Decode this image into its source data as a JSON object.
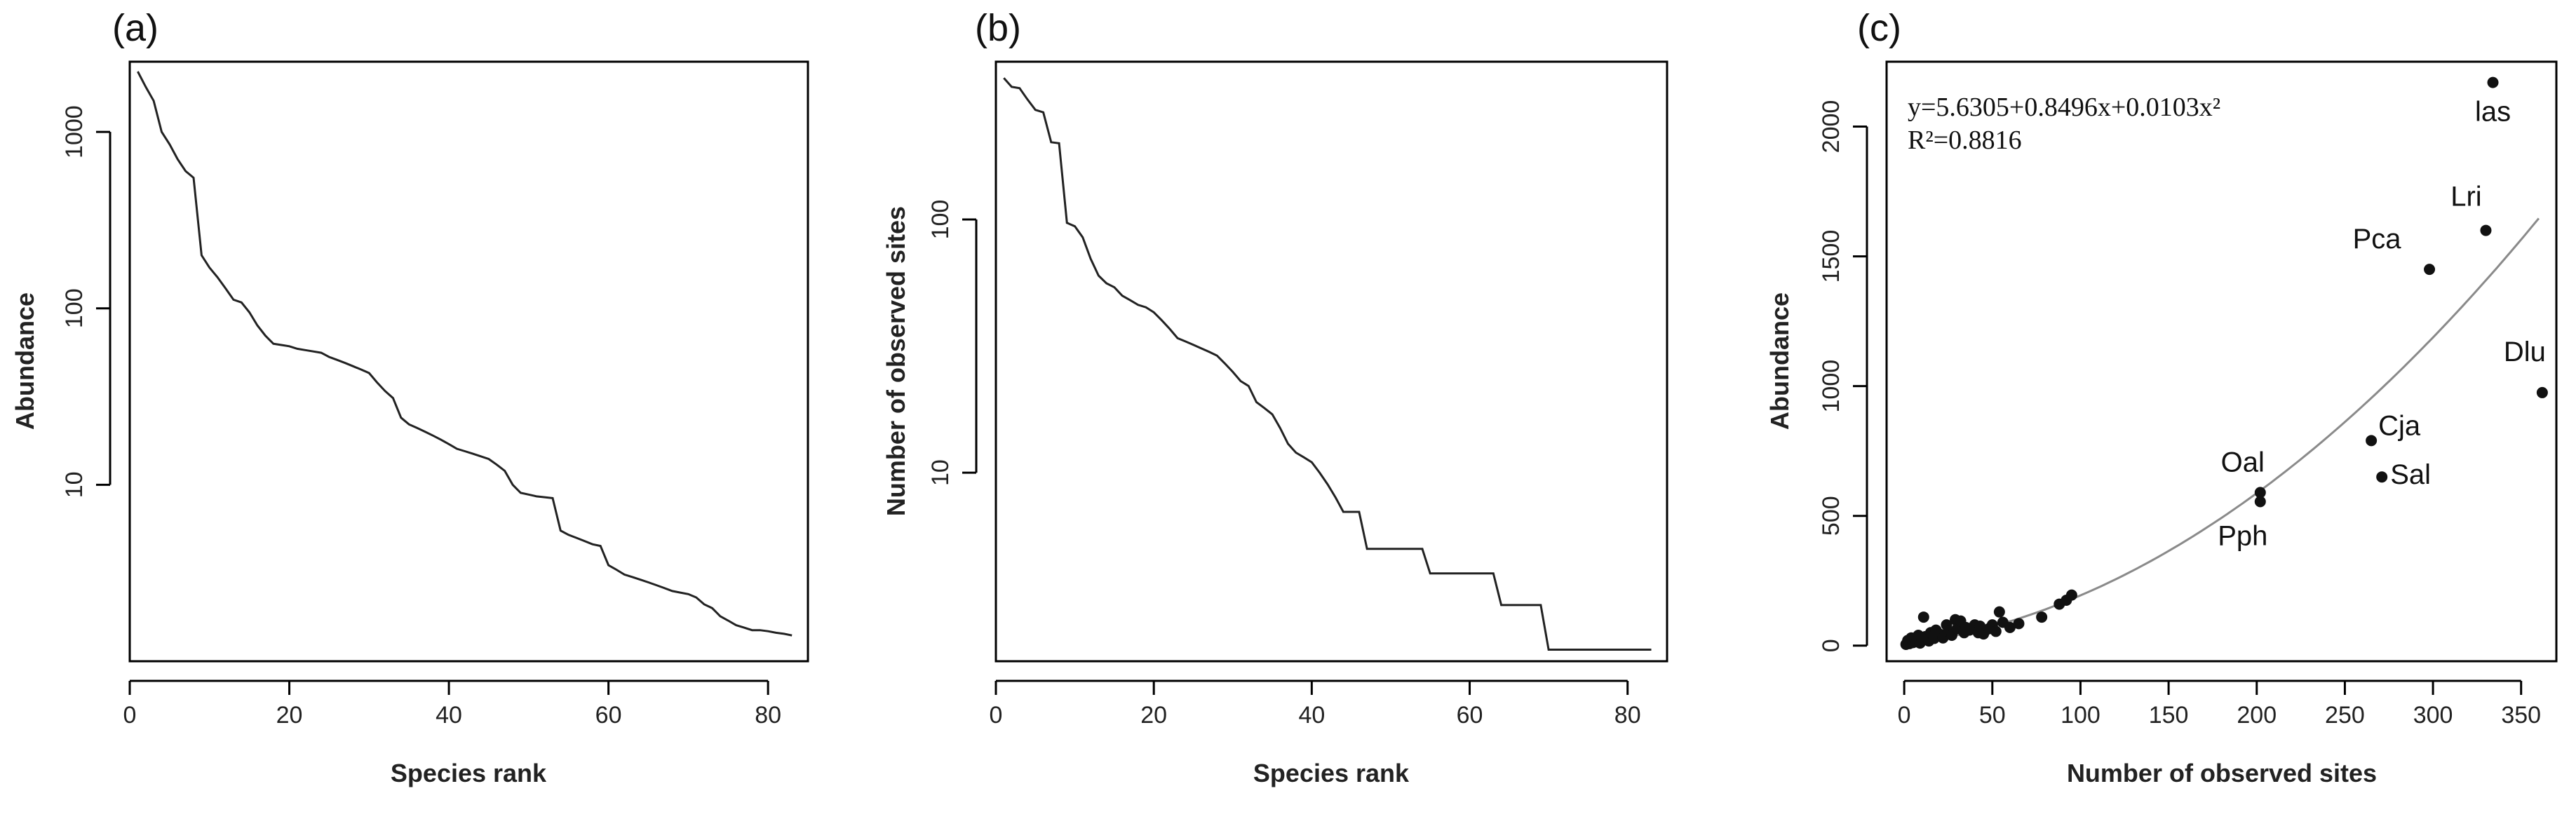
{
  "chart_data": [
    {
      "panel": "(a)",
      "type": "line",
      "xlabel": "Species rank",
      "ylabel": "Abundance",
      "yscale": "log",
      "xlim": [
        0,
        85
      ],
      "ylim": [
        1,
        2500
      ],
      "x_ticks": [
        0,
        20,
        40,
        60,
        80
      ],
      "y_ticks": [
        10,
        100,
        1000
      ],
      "x": [
        1,
        2,
        3,
        4,
        5,
        6,
        7,
        8,
        9,
        10,
        11,
        12,
        13,
        14,
        15,
        16,
        17,
        18,
        19,
        20,
        21,
        22,
        23,
        24,
        25,
        26,
        27,
        28,
        29,
        30,
        31,
        32,
        33,
        34,
        35,
        36,
        37,
        38,
        39,
        40,
        41,
        42,
        43,
        44,
        45,
        46,
        47,
        48,
        49,
        50,
        51,
        52,
        53,
        54,
        55,
        56,
        57,
        58,
        59,
        60,
        61,
        62,
        63,
        64,
        65,
        66,
        67,
        68,
        69,
        70,
        71,
        72,
        73,
        74,
        75,
        76,
        77,
        78,
        79,
        80,
        81,
        82,
        83
      ],
      "values": [
        2200,
        1800,
        1500,
        1000,
        850,
        700,
        600,
        550,
        200,
        170,
        150,
        130,
        112,
        108,
        95,
        80,
        70,
        63,
        62,
        61,
        59,
        58,
        57,
        56,
        53,
        51,
        49,
        47,
        45,
        43,
        38,
        34,
        31,
        24,
        22,
        21,
        20,
        19,
        18,
        17,
        16,
        15.5,
        15,
        14.5,
        14,
        13,
        12,
        10,
        9,
        8.8,
        8.6,
        8.5,
        8.4,
        5.5,
        5.2,
        5,
        4.8,
        4.6,
        4.5,
        3.5,
        3.3,
        3.1,
        3,
        2.9,
        2.8,
        2.7,
        2.6,
        2.5,
        2.45,
        2.4,
        2.3,
        2.1,
        2,
        1.8,
        1.7,
        1.6,
        1.55,
        1.5,
        1.5,
        1.48,
        1.45,
        1.43,
        1.4
      ]
    },
    {
      "panel": "(b)",
      "type": "line",
      "xlabel": "Species rank",
      "ylabel": "Number of observed sites",
      "yscale": "log",
      "xlim": [
        0,
        85
      ],
      "ylim": [
        1.8,
        420
      ],
      "x_ticks": [
        0,
        20,
        40,
        60,
        80
      ],
      "y_ticks": [
        10,
        100
      ],
      "x": [
        1,
        2,
        3,
        4,
        5,
        6,
        7,
        8,
        9,
        10,
        11,
        12,
        13,
        14,
        15,
        16,
        17,
        18,
        19,
        20,
        21,
        22,
        23,
        24,
        25,
        26,
        27,
        28,
        29,
        30,
        31,
        32,
        33,
        34,
        35,
        36,
        37,
        38,
        39,
        40,
        41,
        42,
        43,
        44,
        45,
        46,
        47,
        48,
        49,
        50,
        51,
        52,
        53,
        54,
        55,
        56,
        57,
        58,
        59,
        60,
        61,
        62,
        63,
        64,
        65,
        66,
        67,
        68,
        69,
        70,
        71,
        72,
        73,
        74,
        75,
        76,
        77,
        78,
        79,
        80,
        81,
        82,
        83
      ],
      "values": [
        362,
        334,
        330,
        298,
        271,
        265,
        202,
        200,
        97,
        94,
        85,
        70,
        60,
        56,
        54,
        50,
        48,
        46,
        45,
        43,
        40,
        37,
        34,
        33,
        32,
        31,
        30,
        29,
        27,
        25,
        23,
        22,
        19,
        18,
        17,
        15,
        13,
        12,
        11.5,
        11,
        10,
        9,
        8,
        7,
        7,
        7,
        5,
        5,
        5,
        5,
        5,
        5,
        5,
        5,
        4,
        4,
        4,
        4,
        4,
        4,
        4,
        4,
        4,
        3,
        3,
        3,
        3,
        3,
        3,
        2,
        2,
        2,
        2,
        2,
        2,
        2,
        2,
        2,
        2,
        2,
        2,
        2,
        2
      ]
    },
    {
      "panel": "(c)",
      "type": "scatter",
      "xlabel": "Number of observed sites",
      "ylabel": "Abundance",
      "xlim": [
        -10,
        370
      ],
      "ylim": [
        -60,
        2250
      ],
      "x_ticks": [
        0,
        50,
        100,
        150,
        200,
        250,
        300,
        350
      ],
      "y_ticks": [
        0,
        500,
        1000,
        1500,
        2000
      ],
      "equation": "y=5.6305+0.8496x+0.0103x²",
      "r_squared": "R²=0.8816",
      "fit": {
        "intercept": 5.6305,
        "b1": 0.8496,
        "b2": 0.0103
      },
      "labeled_points": [
        {
          "label": "las",
          "x": 334,
          "y": 2170
        },
        {
          "label": "Lri",
          "x": 330,
          "y": 1600
        },
        {
          "label": "Pca",
          "x": 298,
          "y": 1450
        },
        {
          "label": "Dlu",
          "x": 362,
          "y": 975
        },
        {
          "label": "Cja",
          "x": 265,
          "y": 790
        },
        {
          "label": "Sal",
          "x": 271,
          "y": 650
        },
        {
          "label": "Oal",
          "x": 202,
          "y": 590
        },
        {
          "label": "Pph",
          "x": 202,
          "y": 555
        }
      ],
      "points": [
        {
          "x": 1,
          "y": 5
        },
        {
          "x": 2,
          "y": 20
        },
        {
          "x": 3,
          "y": 8
        },
        {
          "x": 4,
          "y": 30
        },
        {
          "x": 5,
          "y": 12
        },
        {
          "x": 6,
          "y": 25
        },
        {
          "x": 7,
          "y": 15
        },
        {
          "x": 8,
          "y": 40
        },
        {
          "x": 9,
          "y": 10
        },
        {
          "x": 10,
          "y": 22
        },
        {
          "x": 11,
          "y": 110
        },
        {
          "x": 12,
          "y": 35
        },
        {
          "x": 14,
          "y": 18
        },
        {
          "x": 15,
          "y": 50
        },
        {
          "x": 17,
          "y": 28
        },
        {
          "x": 18,
          "y": 60
        },
        {
          "x": 20,
          "y": 45
        },
        {
          "x": 22,
          "y": 30
        },
        {
          "x": 24,
          "y": 80
        },
        {
          "x": 25,
          "y": 55
        },
        {
          "x": 27,
          "y": 40
        },
        {
          "x": 29,
          "y": 100
        },
        {
          "x": 30,
          "y": 65
        },
        {
          "x": 32,
          "y": 95
        },
        {
          "x": 34,
          "y": 50
        },
        {
          "x": 35,
          "y": 70
        },
        {
          "x": 37,
          "y": 60
        },
        {
          "x": 40,
          "y": 80
        },
        {
          "x": 42,
          "y": 50
        },
        {
          "x": 43,
          "y": 75
        },
        {
          "x": 45,
          "y": 45
        },
        {
          "x": 48,
          "y": 65
        },
        {
          "x": 50,
          "y": 80
        },
        {
          "x": 52,
          "y": 55
        },
        {
          "x": 54,
          "y": 130
        },
        {
          "x": 56,
          "y": 90
        },
        {
          "x": 60,
          "y": 70
        },
        {
          "x": 65,
          "y": 85
        },
        {
          "x": 78,
          "y": 110
        },
        {
          "x": 88,
          "y": 160
        },
        {
          "x": 92,
          "y": 175
        },
        {
          "x": 95,
          "y": 195
        }
      ]
    }
  ]
}
